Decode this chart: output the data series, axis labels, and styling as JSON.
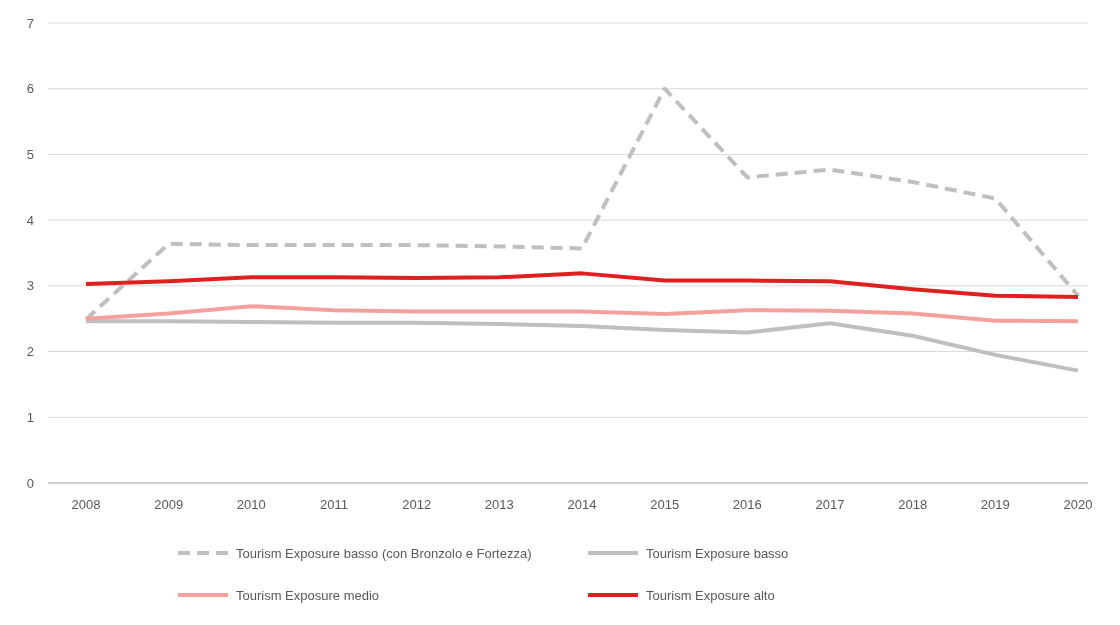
{
  "chart_data": {
    "type": "line",
    "categories": [
      "2008",
      "2009",
      "2010",
      "2011",
      "2012",
      "2013",
      "2014",
      "2015",
      "2016",
      "2017",
      "2018",
      "2019",
      "2020"
    ],
    "ylim": [
      0,
      7
    ],
    "yticks": [
      0,
      1,
      2,
      3,
      4,
      5,
      6,
      7
    ],
    "grid": "y",
    "legend": "bottom",
    "marker": "none",
    "series": [
      {
        "name": "Tourism Exposure basso (con Bronzolo e Fortezza)",
        "color": "#bfbfbf",
        "line_style": "dashed",
        "values": [
          2.49,
          3.64,
          3.62,
          3.62,
          3.62,
          3.6,
          3.57,
          6.0,
          4.65,
          4.77,
          4.58,
          4.33,
          2.85
        ]
      },
      {
        "name": "Tourism Exposure basso",
        "color": "#bfbfbf",
        "line_style": "solid",
        "values": [
          2.46,
          2.46,
          2.45,
          2.44,
          2.44,
          2.42,
          2.39,
          2.33,
          2.29,
          2.43,
          2.24,
          1.95,
          1.71
        ]
      },
      {
        "name": "Tourism Exposure medio",
        "color": "#f4a09c",
        "line_style": "solid",
        "values": [
          2.5,
          2.58,
          2.69,
          2.63,
          2.61,
          2.61,
          2.61,
          2.57,
          2.63,
          2.62,
          2.58,
          2.47,
          2.46
        ]
      },
      {
        "name": "Tourism Exposure alto",
        "color": "#e02020",
        "line_style": "solid",
        "values": [
          3.03,
          3.07,
          3.13,
          3.13,
          3.12,
          3.13,
          3.19,
          3.08,
          3.08,
          3.07,
          2.95,
          2.85,
          2.83
        ]
      }
    ]
  }
}
